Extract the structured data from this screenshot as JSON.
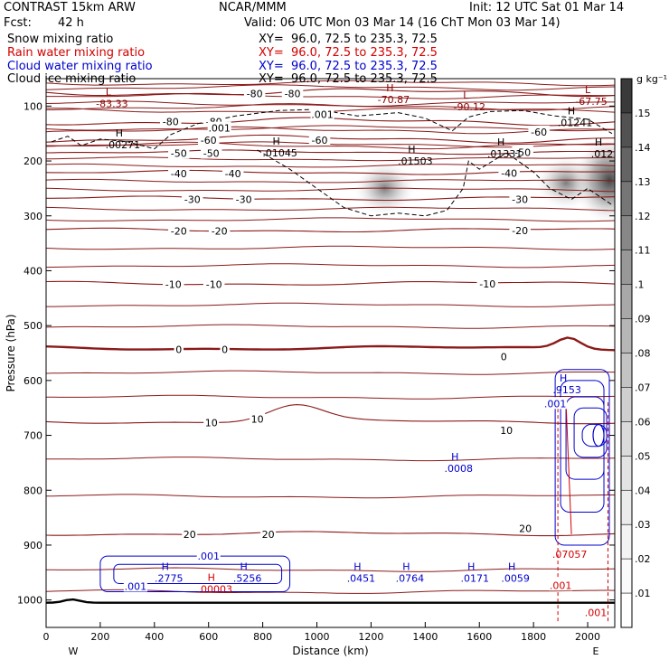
{
  "header": {
    "model": "CONTRAST 15km ARW",
    "fcst_label": "Fcst:",
    "fcst_value": "42 h",
    "center": "NCAR/MMM",
    "init": "Init: 12 UTC Sat 01 Mar 14",
    "valid": "Valid: 06 UTC Mon 03 Mar 14 (16 ChT Mon 03 Mar 14)"
  },
  "fields": [
    {
      "name": "Snow mixing ratio",
      "xy": "XY=  96.0, 72.5 to 235.3, 72.5",
      "color": "#000000"
    },
    {
      "name": "Rain water mixing ratio",
      "xy": "XY=  96.0, 72.5 to 235.3, 72.5",
      "color": "#d40000"
    },
    {
      "name": "Cloud water mixing ratio",
      "xy": "XY=  96.0, 72.5 to 235.3, 72.5",
      "color": "#0000cc"
    },
    {
      "name": "Cloud ice mixing ratio",
      "xy": "XY=  96.0, 72.5 to 235.3, 72.5",
      "color": "#000000"
    }
  ],
  "colorbar": {
    "unit": "g kg⁻¹",
    "ticks": [
      ".15",
      ".14",
      ".13",
      ".12",
      ".11",
      ".1",
      ".09",
      ".08",
      ".07",
      ".06",
      ".05",
      ".04",
      ".03",
      ".02",
      ".01"
    ],
    "colors": [
      "#3a3a3a",
      "#525252",
      "#646464",
      "#767676",
      "#878787",
      "#989898",
      "#a8a8a8",
      "#b6b6b6",
      "#c3c3c3",
      "#cfcfcf",
      "#dadada",
      "#e3e3e3",
      "#ebebeb",
      "#f3f3f3",
      "#fafafa"
    ]
  },
  "chart_data": {
    "type": "contour",
    "xlabel": "Distance (km)",
    "ylabel": "Pressure (hPa)",
    "xlim": [
      0,
      2100
    ],
    "ylim": [
      1050,
      50
    ],
    "x_ticks": [
      0,
      200,
      400,
      600,
      800,
      1000,
      1200,
      1400,
      1600,
      1800,
      2000
    ],
    "y_ticks": [
      100,
      200,
      300,
      400,
      500,
      600,
      700,
      800,
      900,
      1000
    ],
    "end_labels": [
      "W",
      "E"
    ],
    "temperature_contours": [
      {
        "label": "-80",
        "p": 75
      },
      {
        "label": "-80",
        "p": 128
      },
      {
        "label": "-60",
        "p": 160
      },
      {
        "label": "-50",
        "p": 184
      },
      {
        "label": "-40",
        "p": 221
      },
      {
        "label": "-30",
        "p": 268
      },
      {
        "label": "-20",
        "p": 326
      },
      {
        "label": "-10",
        "p": 423
      },
      {
        "label": "0",
        "p": 541
      },
      {
        "label": "10",
        "p": 675
      },
      {
        "label": "20",
        "p": 879
      }
    ],
    "temperature_labels": [
      {
        "text": "-80",
        "x": 460,
        "p": 128
      },
      {
        "text": "-80",
        "x": 620,
        "p": 128
      },
      {
        "text": "-80",
        "x": 770,
        "p": 77
      },
      {
        "text": "-80",
        "x": 910,
        "p": 77
      },
      {
        "text": "-60",
        "x": 600,
        "p": 162
      },
      {
        "text": "-60",
        "x": 1010,
        "p": 162
      },
      {
        "text": "-60",
        "x": 1820,
        "p": 147
      },
      {
        "text": "-50",
        "x": 490,
        "p": 186
      },
      {
        "text": "-50",
        "x": 610,
        "p": 186
      },
      {
        "text": "-50",
        "x": 1760,
        "p": 184
      },
      {
        "text": "-40",
        "x": 490,
        "p": 223
      },
      {
        "text": "-40",
        "x": 690,
        "p": 223
      },
      {
        "text": "-40",
        "x": 1710,
        "p": 222
      },
      {
        "text": "-30",
        "x": 540,
        "p": 270
      },
      {
        "text": "-30",
        "x": 730,
        "p": 270
      },
      {
        "text": "-30",
        "x": 1750,
        "p": 270
      },
      {
        "text": "-20",
        "x": 490,
        "p": 328
      },
      {
        "text": "-20",
        "x": 640,
        "p": 328
      },
      {
        "text": "-20",
        "x": 1750,
        "p": 327
      },
      {
        "text": "-10",
        "x": 470,
        "p": 425
      },
      {
        "text": "-10",
        "x": 620,
        "p": 425
      },
      {
        "text": "-10",
        "x": 1630,
        "p": 424
      },
      {
        "text": "0",
        "x": 490,
        "p": 543
      },
      {
        "text": "0",
        "x": 660,
        "p": 543
      },
      {
        "text": "0",
        "x": 1690,
        "p": 557
      },
      {
        "text": "10",
        "x": 610,
        "p": 677
      },
      {
        "text": "10",
        "x": 780,
        "p": 670
      },
      {
        "text": "10",
        "x": 1700,
        "p": 691
      },
      {
        "text": "20",
        "x": 530,
        "p": 880
      },
      {
        "text": "20",
        "x": 820,
        "p": 880
      },
      {
        "text": "20",
        "x": 1770,
        "p": 870
      }
    ],
    "extrema": [
      {
        "mark": "L",
        "value": "-83.33",
        "x": 230,
        "p": 90,
        "color": "#8b0000"
      },
      {
        "mark": "H",
        "value": "-70.87",
        "x": 1270,
        "p": 83,
        "color": "#8b0000"
      },
      {
        "mark": "L",
        "value": "-90.12",
        "x": 1550,
        "p": 96,
        "color": "#8b0000"
      },
      {
        "mark": "L",
        "value": "-67.75",
        "x": 2000,
        "p": 86,
        "color": "#8b0000"
      },
      {
        "mark": "H",
        "value": ".00271",
        "x": 270,
        "p": 165,
        "color": "#000000"
      },
      {
        "mark": "H",
        "value": ".01045",
        "x": 850,
        "p": 180,
        "color": "#000000"
      },
      {
        "mark": "H",
        "value": ".01503",
        "x": 1350,
        "p": 195,
        "color": "#000000"
      },
      {
        "mark": "H",
        "value": ".01331",
        "x": 1680,
        "p": 182,
        "color": "#000000"
      },
      {
        "mark": "H",
        "value": ".01241",
        "x": 1940,
        "p": 125,
        "color": "#000000"
      },
      {
        "mark": "H",
        "value": ".012",
        "x": 2040,
        "p": 182,
        "color": "#000000"
      },
      {
        "mark": "H",
        "value": ".0008",
        "x": 1510,
        "p": 755,
        "color": "#0000cc"
      },
      {
        "mark": "H",
        "value": ".9153",
        "x": 1910,
        "p": 612,
        "color": "#0000cc"
      },
      {
        "mark": "H",
        "value": ".2775",
        "x": 440,
        "p": 955,
        "color": "#0000cc"
      },
      {
        "mark": "H",
        "value": ".5256",
        "x": 730,
        "p": 955,
        "color": "#0000cc"
      },
      {
        "mark": "H",
        "value": ".0451",
        "x": 1150,
        "p": 955,
        "color": "#0000cc"
      },
      {
        "mark": "H",
        "value": ".0764",
        "x": 1330,
        "p": 955,
        "color": "#0000cc"
      },
      {
        "mark": "H",
        "value": ".0171",
        "x": 1570,
        "p": 955,
        "color": "#0000cc"
      },
      {
        "mark": "H",
        "value": ".0059",
        "x": 1720,
        "p": 955,
        "color": "#0000cc"
      },
      {
        "mark": "H",
        "value": ".00003",
        "x": 610,
        "p": 975,
        "color": "#d40000"
      },
      {
        "mark": "",
        "value": ".07057",
        "x": 1920,
        "p": 912,
        "color": "#d40000"
      }
    ],
    "contour_value_labels": [
      {
        "text": ".001",
        "x": 640,
        "p": 140,
        "color": "#000000"
      },
      {
        "text": ".001",
        "x": 1020,
        "p": 115,
        "color": "#000000"
      },
      {
        "text": ".001",
        "x": 1880,
        "p": 642,
        "color": "#0000cc"
      },
      {
        "text": ".001",
        "x": 600,
        "p": 920,
        "color": "#0000cc"
      },
      {
        "text": ".001",
        "x": 330,
        "p": 975,
        "color": "#0000cc"
      },
      {
        "text": ".001",
        "x": 1900,
        "p": 973,
        "color": "#d40000"
      },
      {
        "text": ".001",
        "x": 2030,
        "p": 1023,
        "color": "#d40000"
      }
    ],
    "snow_shading": [
      {
        "x": 1250,
        "p": 250,
        "max": ".04"
      },
      {
        "x": 1920,
        "p": 240,
        "max": ".07"
      },
      {
        "x": 2080,
        "p": 235,
        "max": ".15"
      }
    ]
  }
}
